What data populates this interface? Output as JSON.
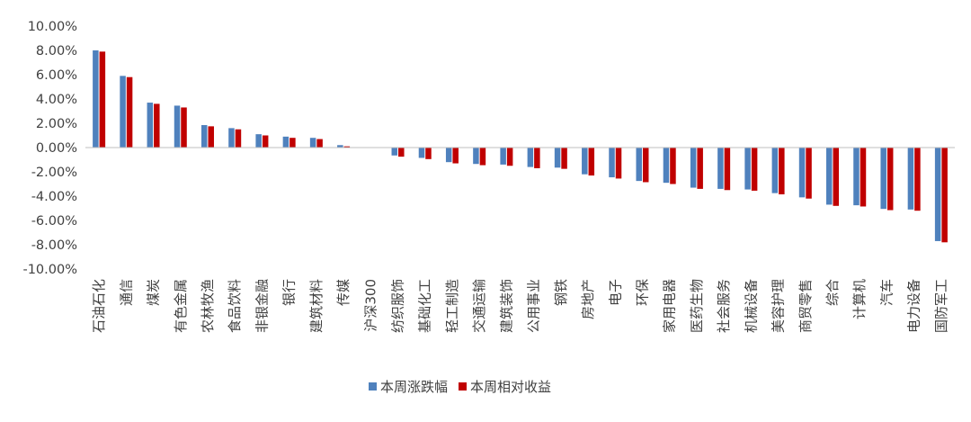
{
  "chart_data": {
    "type": "bar",
    "title": "",
    "xlabel": "",
    "ylabel": "",
    "ylim": [
      -10,
      10
    ],
    "yticks": [
      10,
      8,
      6,
      4,
      2,
      0,
      -2,
      -4,
      -6,
      -8,
      -10
    ],
    "ytick_labels": [
      "10.00%",
      "8.00%",
      "6.00%",
      "4.00%",
      "2.00%",
      "0.00%",
      "-2.00%",
      "-4.00%",
      "-6.00%",
      "-8.00%",
      "-10.00%"
    ],
    "grid": false,
    "legend_position": "bottom",
    "categories": [
      "石油石化",
      "通信",
      "煤炭",
      "有色金属",
      "农林牧渔",
      "食品饮料",
      "非银金融",
      "银行",
      "建筑材料",
      "传媒",
      "沪深300",
      "纺织服饰",
      "基础化工",
      "轻工制造",
      "交通运输",
      "建筑装饰",
      "公用事业",
      "钢铁",
      "房地产",
      "电子",
      "环保",
      "家用电器",
      "医药生物",
      "社会服务",
      "机械设备",
      "美容护理",
      "商贸零售",
      "综合",
      "计算机",
      "汽车",
      "电力设备",
      "国防军工"
    ],
    "series": [
      {
        "name": "本周涨跌幅",
        "color": "#4F81BD",
        "values": [
          8.0,
          5.9,
          3.7,
          3.45,
          1.85,
          1.6,
          1.1,
          0.9,
          0.8,
          0.2,
          0.0,
          -0.65,
          -0.85,
          -1.2,
          -1.35,
          -1.4,
          -1.6,
          -1.65,
          -2.2,
          -2.45,
          -2.75,
          -2.9,
          -3.3,
          -3.4,
          -3.45,
          -3.75,
          -4.1,
          -4.7,
          -4.75,
          -5.05,
          -5.1,
          -7.7
        ]
      },
      {
        "name": "本周相对收益",
        "color": "#C00000",
        "values": [
          7.9,
          5.8,
          3.6,
          3.3,
          1.75,
          1.5,
          1.0,
          0.8,
          0.7,
          0.1,
          0.0,
          -0.75,
          -0.95,
          -1.3,
          -1.45,
          -1.5,
          -1.7,
          -1.75,
          -2.3,
          -2.55,
          -2.85,
          -3.0,
          -3.4,
          -3.5,
          -3.55,
          -3.85,
          -4.2,
          -4.8,
          -4.85,
          -5.15,
          -5.2,
          -7.8
        ]
      }
    ]
  }
}
